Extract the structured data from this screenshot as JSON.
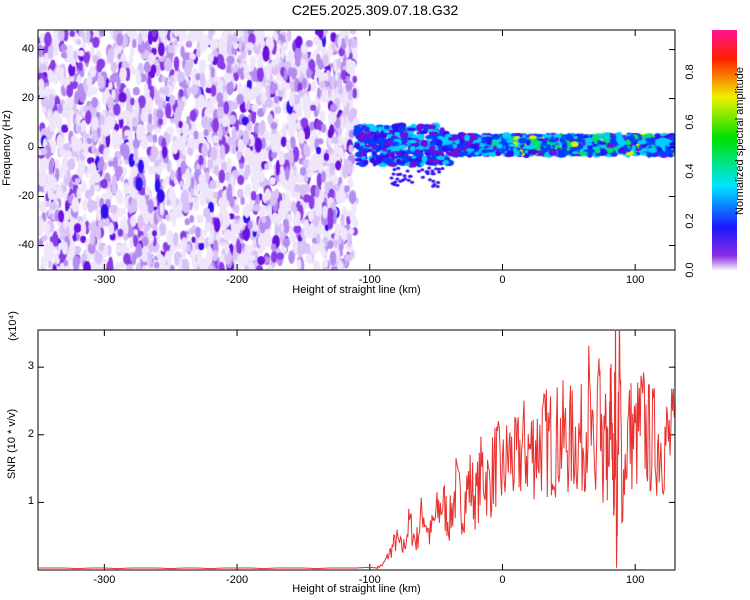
{
  "title": "C2E5.2025.309.07.18.G32",
  "chart_data": [
    {
      "type": "heatmap",
      "title": "C2E5.2025.309.07.18.G32",
      "xlabel": "Height of straight line (km)",
      "ylabel": "Frequency (Hz)",
      "xlim": [
        -350,
        130
      ],
      "ylim": [
        -50,
        48
      ],
      "xticks": [
        -300,
        -200,
        -100,
        0,
        100
      ],
      "yticks": [
        40,
        20,
        0,
        -20,
        -40
      ],
      "colorbar": {
        "label": "Normalized spectral amplitude",
        "range": [
          0,
          1
        ],
        "ticks": [
          "0.0",
          "0.2",
          "0.4",
          "0.6",
          "0.8"
        ]
      },
      "description_regions": [
        {
          "x_range": [
            -350,
            -110
          ],
          "freq_range": [
            -50,
            48
          ],
          "level": "noise 0.0-0.15"
        },
        {
          "x_range": [
            -110,
            130
          ],
          "freq_range": [
            -5,
            5
          ],
          "level": "signal 0.3-0.9"
        }
      ]
    },
    {
      "type": "line",
      "xlabel": "Height of straight line (km)",
      "ylabel": "SNR (10 * v/v)",
      "yscale_label": "(x10⁴)",
      "xlim": [
        -350,
        130
      ],
      "ylim": [
        0,
        3.55
      ],
      "xticks": [
        -300,
        -200,
        -100,
        0,
        100
      ],
      "yticks": [
        1,
        2,
        3
      ],
      "color": "#e8312f",
      "series": [
        {
          "name": "SNR",
          "x": [
            -350,
            -340,
            -330,
            -320,
            -310,
            -300,
            -290,
            -280,
            -270,
            -260,
            -250,
            -240,
            -230,
            -220,
            -210,
            -200,
            -190,
            -180,
            -170,
            -160,
            -150,
            -140,
            -130,
            -120,
            -110,
            -100,
            -95,
            -90,
            -85,
            -80,
            -75,
            -70,
            -65,
            -60,
            -55,
            -50,
            -45,
            -40,
            -35,
            -30,
            -25,
            -20,
            -15,
            -10,
            -5,
            0,
            5,
            10,
            15,
            20,
            25,
            30,
            35,
            40,
            45,
            50,
            55,
            60,
            65,
            70,
            72,
            75,
            78,
            80,
            82,
            84,
            85,
            86,
            88,
            90,
            95,
            100,
            105,
            110,
            115,
            120,
            125,
            130
          ],
          "y": [
            0.03,
            0.03,
            0.03,
            0.02,
            0.03,
            0.03,
            0.02,
            0.03,
            0.03,
            0.03,
            0.02,
            0.03,
            0.03,
            0.02,
            0.03,
            0.03,
            0.03,
            0.02,
            0.03,
            0.03,
            0.03,
            0.02,
            0.03,
            0.03,
            0.03,
            0.04,
            0.03,
            0.08,
            0.25,
            0.45,
            0.3,
            0.7,
            0.4,
            0.9,
            0.5,
            0.8,
            1.0,
            0.7,
            1.2,
            0.9,
            1.3,
            1.05,
            1.5,
            1.25,
            1.6,
            1.4,
            1.7,
            1.55,
            1.8,
            1.75,
            1.85,
            1.9,
            1.88,
            1.92,
            1.95,
            1.9,
            1.94,
            1.9,
            2.4,
            1.2,
            2.6,
            1.5,
            1.9,
            1.3,
            2.8,
            0.7,
            3.55,
            0.05,
            3.4,
            1.1,
            2.1,
            1.9,
            2.2,
            1.95,
            1.9,
            1.92,
            1.88,
            1.9
          ]
        }
      ]
    }
  ]
}
